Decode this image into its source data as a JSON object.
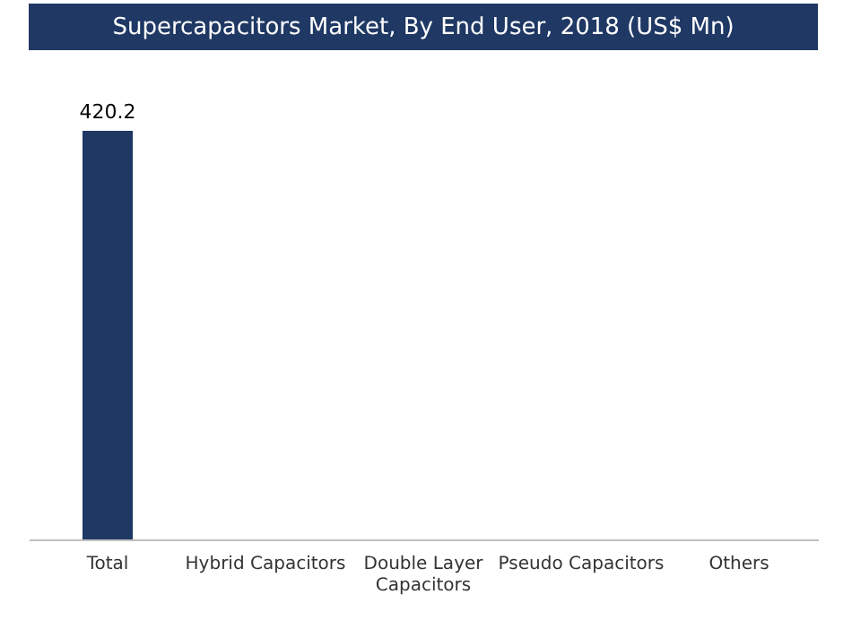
{
  "chart_data": {
    "type": "bar",
    "title": "Supercapacitors Market, By End User, 2018 (US$ Mn)",
    "categories": [
      "Total",
      "Hybrid Capacitors",
      "Double Layer Capacitors",
      "Pseudo Capacitors",
      "Others"
    ],
    "values": [
      420.2,
      null,
      null,
      null,
      null
    ],
    "color": "#1f3864",
    "data_labels": true
  }
}
